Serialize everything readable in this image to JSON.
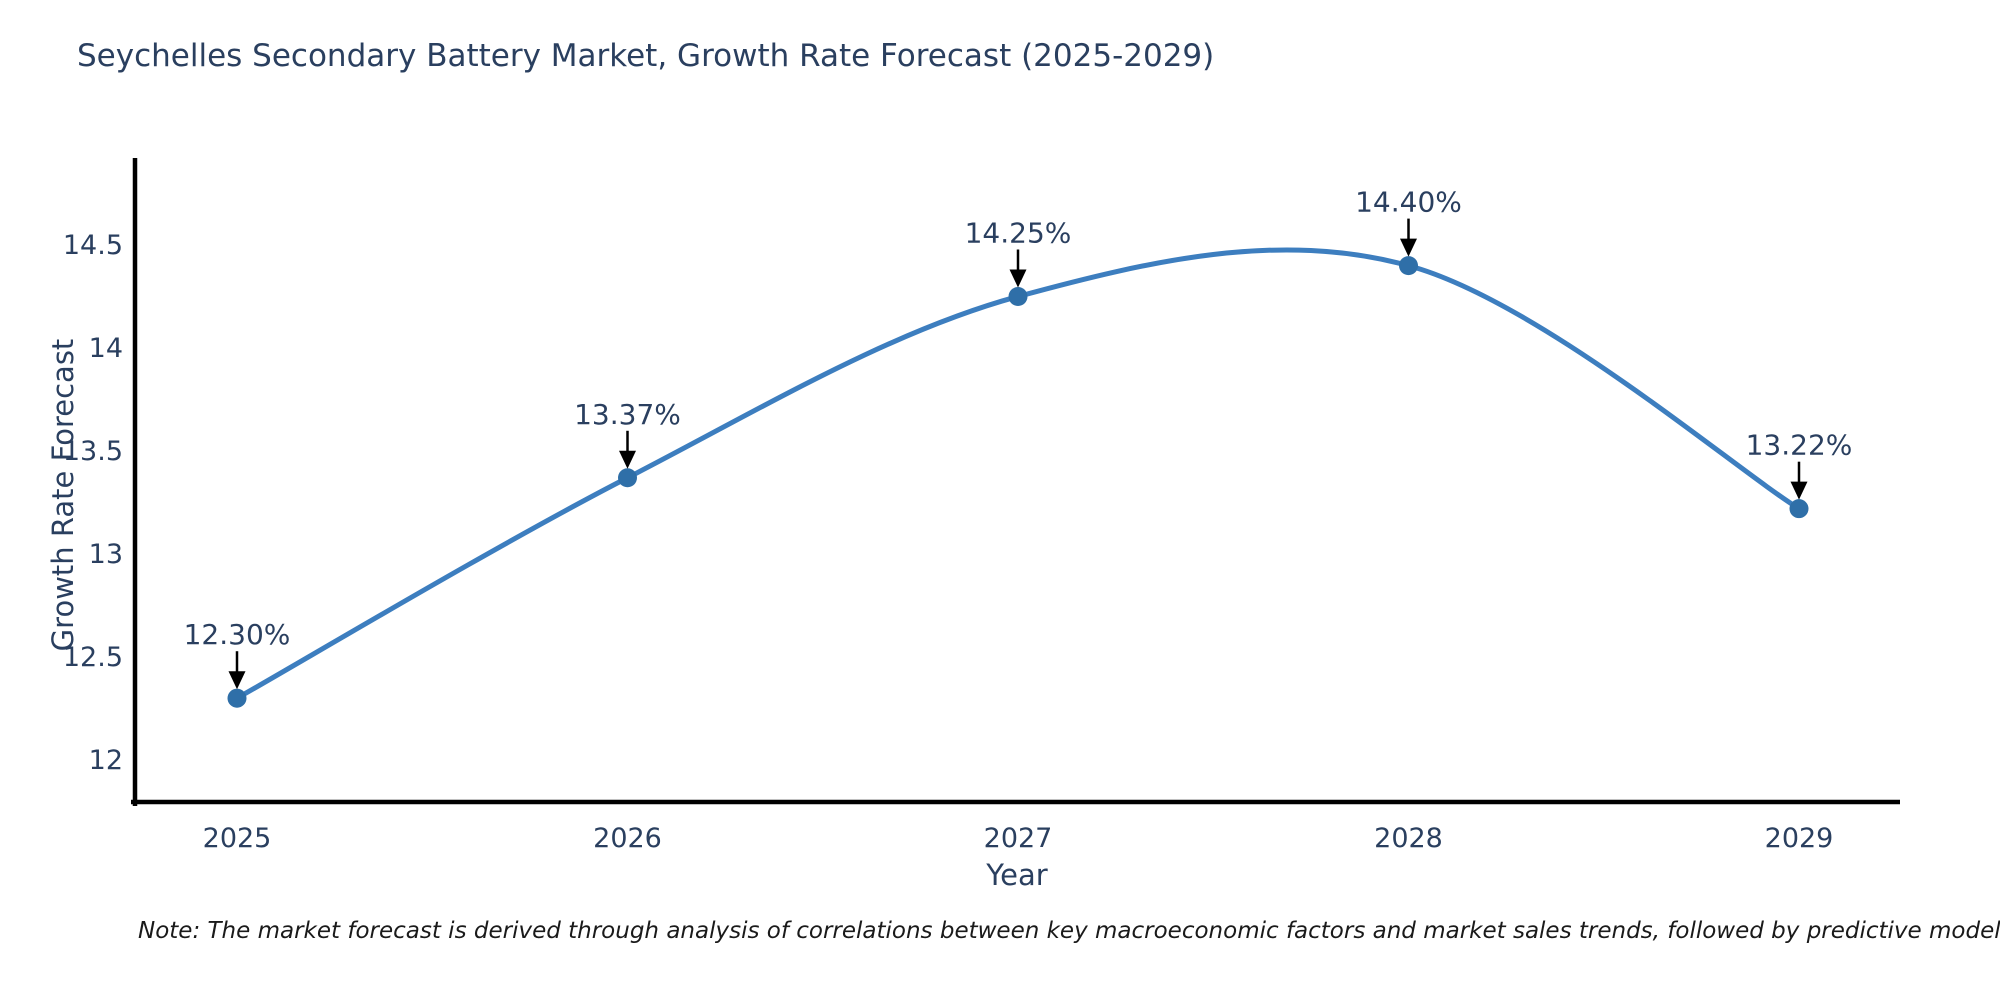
{
  "chart": {
    "title": "Seychelles Secondary Battery Market, Growth Rate Forecast (2025-2029)",
    "xlabel": "Year",
    "ylabel": "Growth Rate Forecast"
  },
  "note": "Note: The market forecast is derived through analysis of correlations between key macroeconomic factors and market sales trends, followed by predictive modeling to project future sal",
  "chart_data": {
    "type": "line",
    "title": "Seychelles Secondary Battery Market, Growth Rate Forecast (2025-2029)",
    "xlabel": "Year",
    "ylabel": "Growth Rate Forecast",
    "x": [
      2025,
      2026,
      2027,
      2028,
      2029
    ],
    "x_tick_labels": [
      "2025",
      "2026",
      "2027",
      "2028",
      "2029"
    ],
    "values": [
      12.3,
      13.37,
      14.25,
      14.4,
      13.22
    ],
    "point_labels": [
      "12.30%",
      "13.37%",
      "14.25%",
      "14.40%",
      "13.22%"
    ],
    "y_ticks": [
      12,
      12.5,
      13,
      13.5,
      14,
      14.5
    ],
    "ylim": [
      11.8,
      14.92
    ],
    "line_shape": "spline",
    "grid": false,
    "legend": false,
    "colors": {
      "line": "#3d7ebf",
      "marker": "#2f6fa8",
      "axis": "#000000",
      "tick_text": "#2a3f5f",
      "annotation_text": "#2a3f5f",
      "arrow": "#000000",
      "title_text": "#2a3f5f",
      "note_text": "#1a1a1a"
    }
  }
}
